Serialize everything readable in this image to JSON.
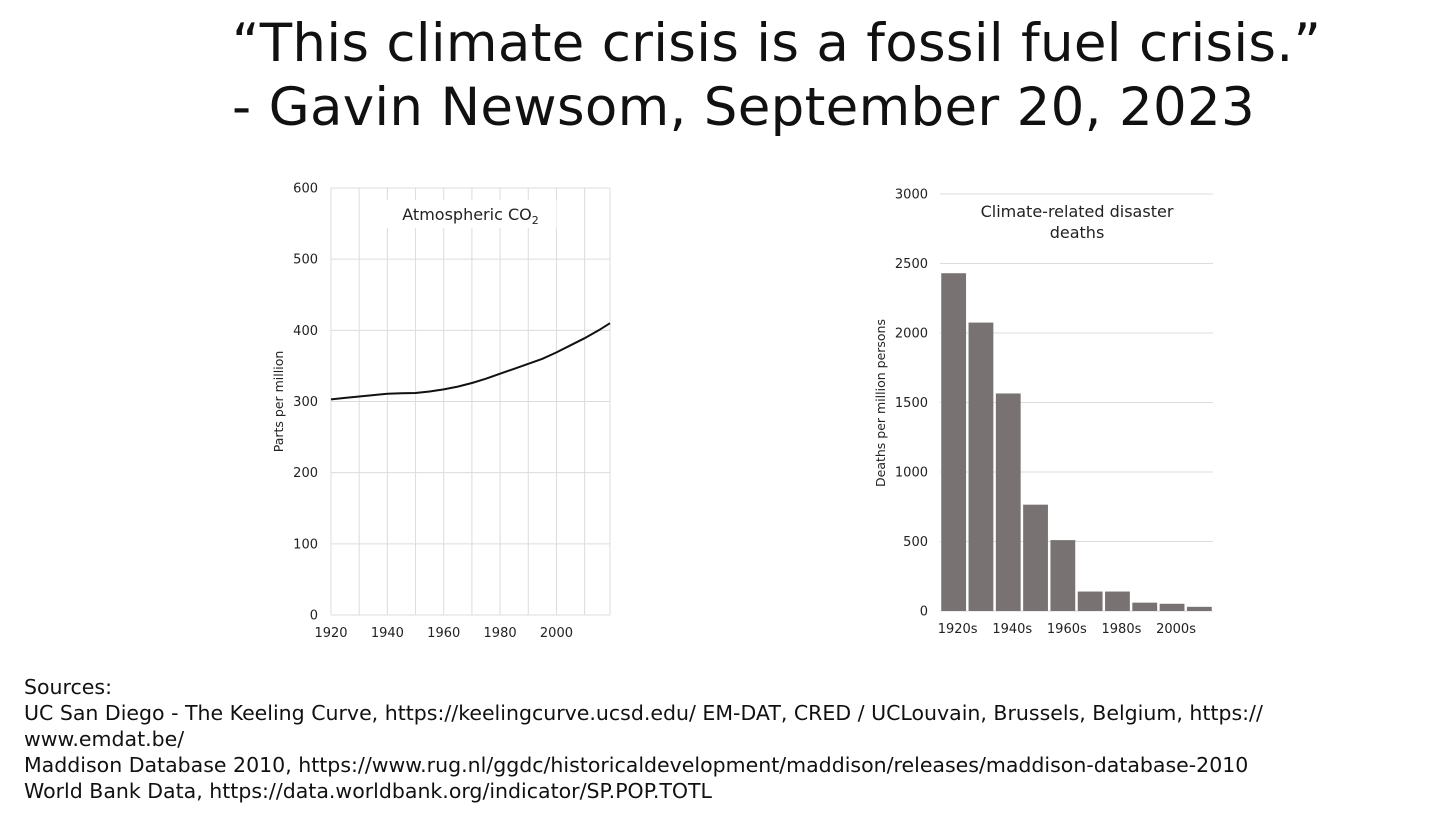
{
  "quote": {
    "line1": "“This climate crisis is a fossil fuel crisis.”",
    "line2": "- Gavin Newsom, September 20, 2023"
  },
  "chart_data": [
    {
      "type": "line",
      "title": "Atmospheric CO",
      "title_subscript": "2",
      "xlabel": "",
      "ylabel": "Parts per million",
      "xlim": [
        1920,
        2019
      ],
      "ylim": [
        0,
        600
      ],
      "x_ticks": [
        1920,
        1940,
        1960,
        1980,
        2000
      ],
      "y_ticks": [
        0,
        100,
        200,
        300,
        400,
        500,
        600
      ],
      "grid": true,
      "line_color": "#111111",
      "series": [
        {
          "x": [
            1920,
            1925,
            1930,
            1935,
            1940,
            1945,
            1950,
            1955,
            1960,
            1965,
            1970,
            1975,
            1980,
            1985,
            1990,
            1995,
            2000,
            2005,
            2010,
            2015,
            2019
          ],
          "y": [
            303,
            305,
            307,
            309,
            311,
            311.5,
            312,
            314,
            317,
            321,
            326,
            332,
            339,
            346,
            353,
            360,
            369,
            379,
            389,
            400,
            410
          ]
        }
      ]
    },
    {
      "type": "bar",
      "title": "Climate-related disaster deaths",
      "title_lines": [
        "Climate-related disaster",
        "deaths"
      ],
      "xlabel": "",
      "ylabel": "Deaths per million persons",
      "ylim": [
        0,
        3000
      ],
      "y_ticks": [
        0,
        500,
        1000,
        1500,
        2000,
        2500,
        3000
      ],
      "grid": true,
      "bar_color": "#787272",
      "categories": [
        "1920s",
        "1930s",
        "1940s",
        "1950s",
        "1960s",
        "1970s",
        "1980s",
        "1990s",
        "2000s",
        "2010s"
      ],
      "category_labels_shown": [
        "1920s",
        "1940s",
        "1960s",
        "1980s",
        "2000s"
      ],
      "values": [
        2430,
        2075,
        1565,
        765,
        510,
        140,
        140,
        60,
        52,
        30
      ]
    }
  ],
  "sources": {
    "heading": "Sources:",
    "lines": [
      "UC San Diego - The Keeling Curve, https://keelingcurve.ucsd.edu/ EM-DAT, CRED / UCLouvain, Brussels, Belgium, https://",
      "www.emdat.be/",
      "Maddison Database 2010, https://www.rug.nl/ggdc/historicaldevelopment/maddison/releases/maddison-database-2010",
      "World Bank Data, https://data.worldbank.org/indicator/SP.POP.TOTL"
    ]
  }
}
